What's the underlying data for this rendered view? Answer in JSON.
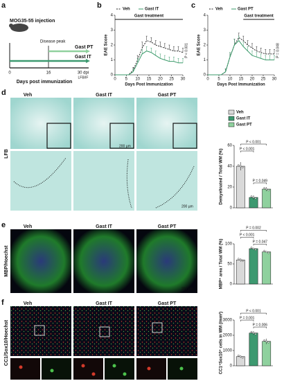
{
  "panel_labels": [
    "a",
    "b",
    "c",
    "d",
    "e",
    "f"
  ],
  "schematic": {
    "injection": "MOG35-55 injection",
    "peak": "Disease peak",
    "pt": "Gast PT",
    "it": "Gast IT",
    "day0": "0",
    "day16": "16",
    "day30": "30 dpi",
    "endpoint": "LFB/IF",
    "xlabel": "Days post immunization"
  },
  "images": {
    "groups": [
      "Veh",
      "Gast IT",
      "Gast PT"
    ],
    "d_stain": "LFB",
    "d_scale1": "200 µm",
    "d_scale2": "200 µm",
    "e_stain": "MBP/Hoechst",
    "e_scale": "200 µm",
    "f_stain": "CC1/Sox10/Hoechst",
    "f_scale": "50 µm"
  },
  "chart_data": [
    {
      "type": "line",
      "ylabel": "EAE Score",
      "xlabel": "Days Post Immunization",
      "x": [
        0,
        2,
        4,
        6,
        8,
        10,
        12,
        14,
        16,
        18,
        20,
        22,
        24,
        26,
        28,
        30
      ],
      "xlim": [
        0,
        30
      ],
      "xticks": [
        0,
        5,
        10,
        15,
        20,
        25,
        30
      ],
      "ylim": [
        0,
        4
      ],
      "yticks": [
        0,
        1,
        2,
        3,
        4
      ],
      "treatment": {
        "label": "Gast treatment",
        "start": 0,
        "end": 30
      },
      "annotation": "P < 0.001",
      "series": [
        {
          "name": "Veh",
          "color": "#222222",
          "dashed": true,
          "values": [
            0,
            0,
            0,
            0,
            0.3,
            1.0,
            1.8,
            2.3,
            2.2,
            2.0,
            1.9,
            1.8,
            1.7,
            1.6,
            1.6,
            1.5
          ],
          "errors": [
            0,
            0,
            0,
            0,
            0.2,
            0.3,
            0.4,
            0.3,
            0.3,
            0.3,
            0.3,
            0.3,
            0.3,
            0.3,
            0.3,
            0.3
          ]
        },
        {
          "name": "Gast IT",
          "color": "#3a9a6a",
          "dashed": false,
          "values": [
            0,
            0,
            0,
            0,
            0.2,
            0.8,
            1.4,
            1.6,
            1.5,
            1.3,
            1.1,
            1.0,
            0.9,
            0.9,
            0.8,
            0.8
          ],
          "errors": [
            0,
            0,
            0,
            0,
            0.2,
            0.3,
            0.3,
            0.3,
            0.3,
            0.3,
            0.3,
            0.3,
            0.3,
            0.3,
            0.3,
            0.3
          ]
        }
      ]
    },
    {
      "type": "line",
      "ylabel": "EAE Score",
      "xlabel": "Days Post Immunization",
      "x": [
        0,
        2,
        4,
        6,
        8,
        10,
        12,
        14,
        16,
        18,
        20,
        22,
        24,
        26,
        28,
        30
      ],
      "xlim": [
        0,
        30
      ],
      "xticks": [
        0,
        5,
        10,
        15,
        20,
        25,
        30
      ],
      "ylim": [
        0,
        4
      ],
      "yticks": [
        0,
        1,
        2,
        3,
        4
      ],
      "treatment": {
        "label": "Gast treatment",
        "start": 16,
        "end": 30
      },
      "annotation": "P = 0.048",
      "series": [
        {
          "name": "Veh",
          "color": "#222222",
          "dashed": true,
          "values": [
            0,
            0,
            0,
            0,
            0.2,
            1.2,
            2.0,
            2.5,
            2.3,
            2.0,
            1.8,
            1.6,
            1.5,
            1.4,
            1.4,
            1.4
          ],
          "errors": [
            0,
            0,
            0,
            0,
            0.2,
            0.3,
            0.4,
            0.3,
            0.3,
            0.3,
            0.3,
            0.3,
            0.3,
            0.3,
            0.3,
            0.3
          ]
        },
        {
          "name": "Gast PT",
          "color": "#3a9a6a",
          "dashed": false,
          "values": [
            0,
            0,
            0,
            0,
            0.2,
            1.2,
            2.0,
            2.3,
            1.9,
            1.6,
            1.3,
            1.2,
            1.1,
            1.0,
            1.0,
            1.0
          ],
          "errors": [
            0,
            0,
            0,
            0,
            0.2,
            0.3,
            0.4,
            0.3,
            0.3,
            0.3,
            0.3,
            0.3,
            0.3,
            0.3,
            0.3,
            0.3
          ]
        }
      ]
    },
    {
      "type": "bar",
      "ylabel": "Demyelinated / Total WM (%)",
      "legend": [
        "Veh",
        "Gast IT",
        "Gast PT"
      ],
      "values": [
        40,
        10,
        18
      ],
      "errors": [
        4,
        2,
        2
      ],
      "colors": [
        "#d9d9d9",
        "#3d9970",
        "#8fd19e"
      ],
      "ylim": [
        0,
        60
      ],
      "yticks": [
        0,
        20,
        40,
        60
      ],
      "annotations": [
        "P < 0.001",
        "P < 0.001",
        "P = 0.049"
      ]
    },
    {
      "type": "bar",
      "ylabel": "MBP⁺ area / Total WM (%)",
      "values": [
        60,
        88,
        80
      ],
      "errors": [
        4,
        1,
        1.5
      ],
      "colors": [
        "#d9d9d9",
        "#3d9970",
        "#8fd19e"
      ],
      "ylim": [
        0,
        100
      ],
      "yticks": [
        0,
        50,
        100
      ],
      "annotations": [
        "P = 0.002",
        "P < 0.001",
        "P = 0.047"
      ]
    },
    {
      "type": "bar",
      "ylabel": "CC1⁺Sox10⁺ cells in WM (/mm²)",
      "values": [
        600,
        2150,
        1600
      ],
      "errors": [
        80,
        120,
        180
      ],
      "colors": [
        "#d9d9d9",
        "#3d9970",
        "#8fd19e"
      ],
      "ylim": [
        0,
        3000
      ],
      "yticks": [
        0,
        1000,
        2000,
        3000
      ],
      "annotations": [
        "P < 0.001",
        "P = 0.001",
        "P = 0.006"
      ]
    }
  ]
}
